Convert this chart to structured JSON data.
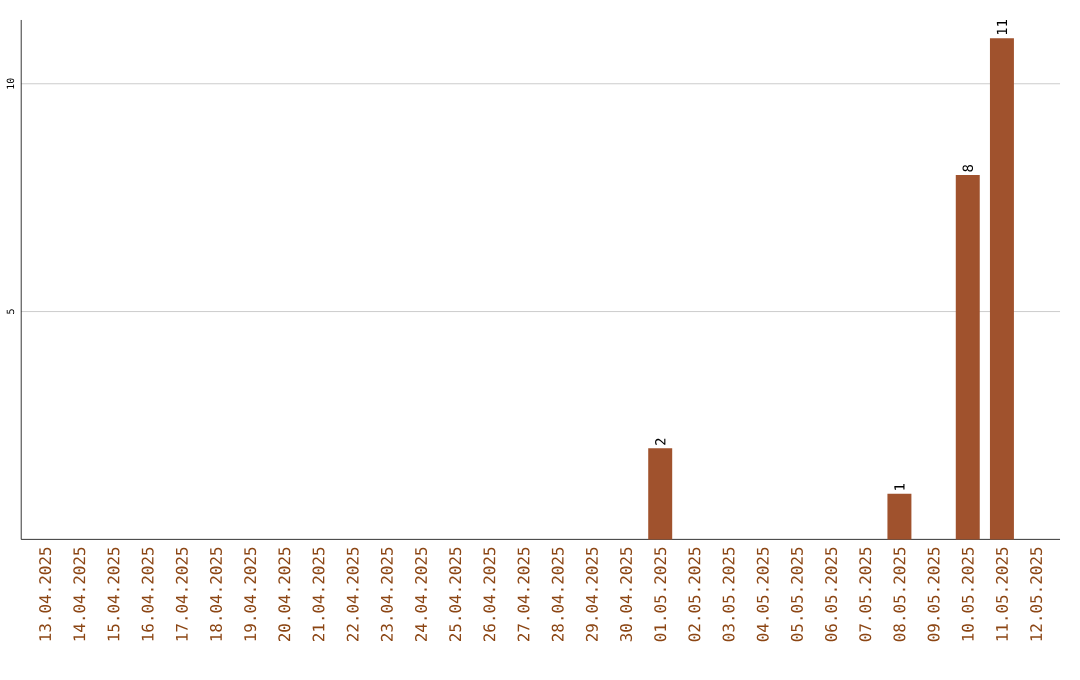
{
  "chart_data": {
    "type": "bar",
    "categories": [
      "13.04.2025",
      "14.04.2025",
      "15.04.2025",
      "16.04.2025",
      "17.04.2025",
      "18.04.2025",
      "19.04.2025",
      "20.04.2025",
      "21.04.2025",
      "22.04.2025",
      "23.04.2025",
      "24.04.2025",
      "25.04.2025",
      "26.04.2025",
      "27.04.2025",
      "28.04.2025",
      "29.04.2025",
      "30.04.2025",
      "01.05.2025",
      "02.05.2025",
      "03.05.2025",
      "04.05.2025",
      "05.05.2025",
      "06.05.2025",
      "07.05.2025",
      "08.05.2025",
      "09.05.2025",
      "10.05.2025",
      "11.05.2025",
      "12.05.2025"
    ],
    "values": [
      0,
      0,
      0,
      0,
      0,
      0,
      0,
      0,
      0,
      0,
      0,
      0,
      0,
      0,
      0,
      0,
      0,
      0,
      2,
      0,
      0,
      0,
      0,
      0,
      0,
      1,
      0,
      8,
      11,
      0
    ],
    "value_labels": [
      null,
      null,
      null,
      null,
      null,
      null,
      null,
      null,
      null,
      null,
      null,
      null,
      null,
      null,
      null,
      null,
      null,
      null,
      "2",
      null,
      null,
      null,
      null,
      null,
      null,
      "1",
      null,
      "8",
      "11",
      null
    ],
    "color": "#a0522d",
    "ylim": [
      0,
      11.4
    ],
    "yticks": [
      5,
      10
    ],
    "grid": "y"
  }
}
